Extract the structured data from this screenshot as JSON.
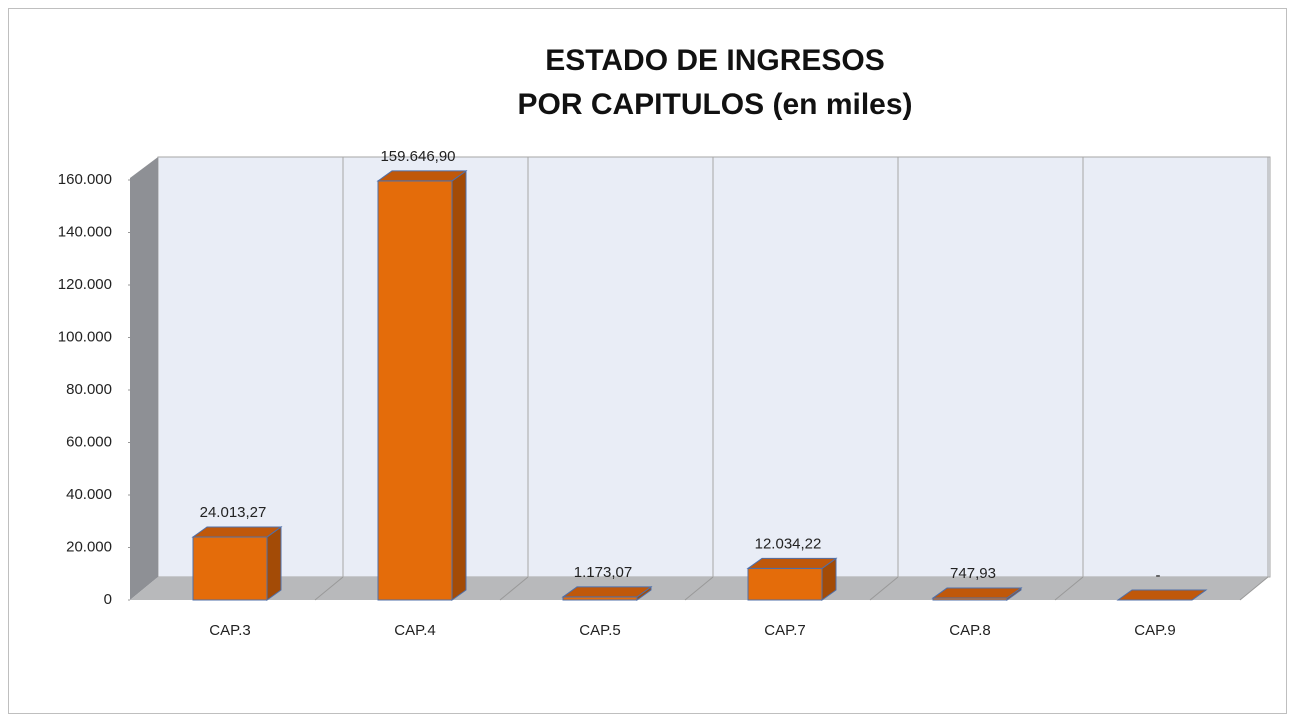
{
  "chart_data": {
    "type": "bar3d",
    "title": [
      "ESTADO DE INGRESOS",
      "POR CAPITULOS (en miles)"
    ],
    "categories": [
      "CAP.3",
      "CAP.4",
      "CAP.5",
      "CAP.7",
      "CAP.8",
      "CAP.9"
    ],
    "values": [
      24013.27,
      159646.9,
      1173.07,
      12034.22,
      747.93,
      0
    ],
    "value_labels": [
      "24.013,27",
      "159.646,90",
      "1.173,07",
      "12.034,22",
      "747,93",
      "-"
    ],
    "color": "#e46c0a",
    "ylim": [
      0,
      160000
    ],
    "yticks": [
      0,
      {
        "value": 20000,
        "label": "20.000"
      },
      {
        "value": 40000,
        "label": "40.000"
      },
      {
        "value": 60000,
        "label": "60.000"
      },
      {
        "value": 80000,
        "label": "80.000"
      },
      {
        "value": 100000,
        "label": "100.000"
      },
      {
        "value": 120000,
        "label": "120.000"
      },
      {
        "value": 140000,
        "label": "140.000"
      },
      {
        "value": 160000,
        "label": "160.000"
      }
    ]
  }
}
